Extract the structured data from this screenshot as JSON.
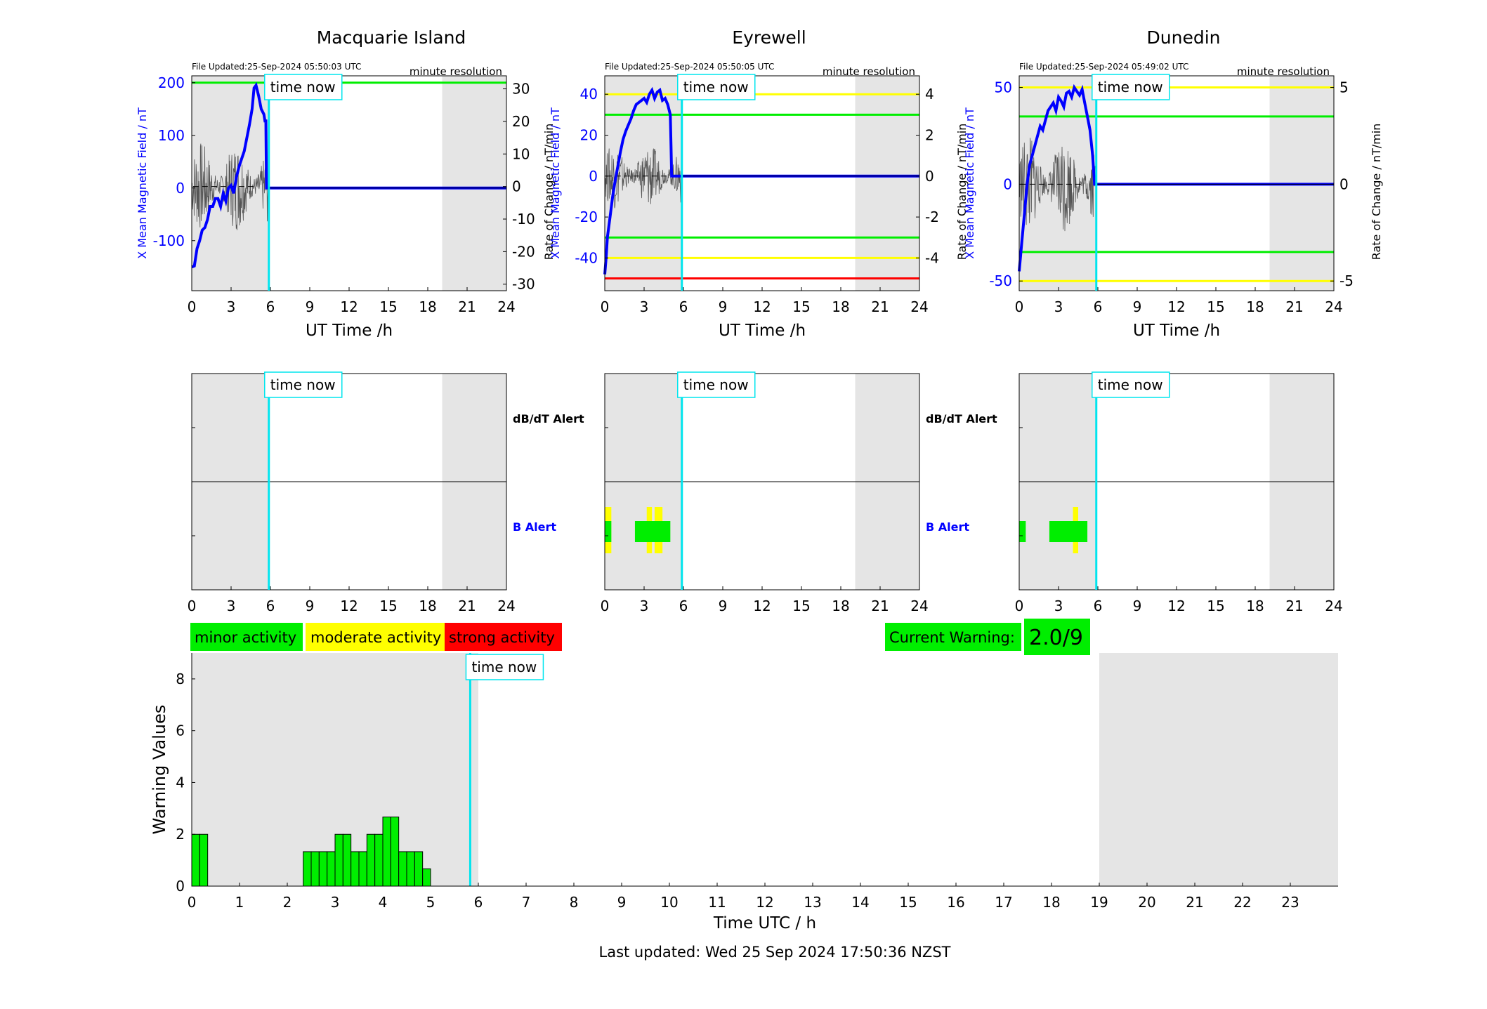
{
  "stations": [
    {
      "name": "Macquarie Island",
      "file_updated": "File Updated:25-Sep-2024 05:50:03 UTC",
      "resolution": "minute resolution",
      "left_axis_label": "X Mean Magnetic Field / nT",
      "right_axis_label": "Rate of Change / nT/min",
      "y_left_ticks": [
        -100,
        0,
        100,
        200
      ],
      "y_right_ticks": [
        -30,
        -20,
        -10,
        0,
        10,
        20,
        30
      ]
    },
    {
      "name": "Eyrewell",
      "file_updated": "File Updated:25-Sep-2024 05:50:05 UTC",
      "resolution": "minute resolution",
      "left_axis_label": "X Mean Magnetic Field / nT",
      "right_axis_label": "Rate of Change / nT/min",
      "y_left_ticks": [
        -40,
        -20,
        0,
        20,
        40
      ],
      "y_right_ticks": [
        -4,
        -2,
        0,
        2,
        4
      ]
    },
    {
      "name": "Dunedin",
      "file_updated": "File Updated:25-Sep-2024 05:49:02 UTC",
      "resolution": "minute resolution",
      "left_axis_label": "X Mean Magnetic Field / nT",
      "right_axis_label": "Rate of Change / nT/min",
      "y_left_ticks": [
        -50,
        0,
        50
      ],
      "y_right_ticks": [
        -5,
        0,
        5
      ]
    }
  ],
  "x_axis_label": "UT Time /h",
  "x_ticks": [
    0,
    3,
    6,
    9,
    12,
    15,
    18,
    21,
    24
  ],
  "time_now_label": "time now",
  "alert_labels": {
    "dbdt": "dB/dT Alert",
    "b": "B Alert"
  },
  "legend": {
    "minor": "minor activity",
    "moderate": "moderate activity",
    "strong": "strong activity"
  },
  "current_warning": {
    "label": "Current Warning:",
    "value": "2.0/9"
  },
  "warning_chart": {
    "ylabel": "Warning Values",
    "xlabel": "Time UTC / h",
    "y_ticks": [
      0,
      2,
      4,
      6,
      8
    ],
    "x_ticks": [
      0,
      1,
      2,
      3,
      4,
      5,
      6,
      7,
      8,
      9,
      10,
      11,
      12,
      13,
      14,
      15,
      16,
      17,
      18,
      19,
      20,
      21,
      22,
      23
    ]
  },
  "last_updated": "Last updated: Wed 25 Sep 2024 17:50:36 NZST",
  "colors": {
    "minor": "#00ee00",
    "moderate": "#ffff00",
    "strong": "#ff0000",
    "field": "#0000ff",
    "time_now": "#00e5ee",
    "night": "#e5e5e5"
  },
  "chart_data": [
    {
      "type": "line",
      "title": "Macquarie Island",
      "xlabel": "UT Time /h",
      "ylabel": "X Mean Magnetic Field / nT",
      "y2label": "Rate of Change / nT/min",
      "xlim": [
        0,
        24
      ],
      "ylim": [
        -195,
        213
      ],
      "y2lim": [
        -32,
        34
      ],
      "time_now": 5.88,
      "night_shading": [
        [
          0,
          5.88
        ],
        [
          19.1,
          24
        ]
      ],
      "thresholds": [
        {
          "value": 200,
          "level": "minor"
        }
      ],
      "series": [
        {
          "x": [
            0,
            0.2,
            0.4,
            0.6,
            0.8,
            1.0,
            1.2,
            1.4,
            1.6,
            1.8,
            2.0,
            2.2,
            2.4,
            2.6,
            2.8,
            3.0,
            3.2,
            3.4,
            3.6,
            3.8,
            4.0,
            4.2,
            4.4,
            4.6,
            4.75,
            4.9,
            5.1,
            5.3,
            5.5,
            5.6,
            5.65,
            5.7,
            5.8,
            6,
            24
          ],
          "values": [
            -150,
            -148,
            -115,
            -100,
            -80,
            -75,
            -60,
            -35,
            -35,
            -20,
            -20,
            -35,
            -10,
            -25,
            0,
            5,
            -10,
            20,
            40,
            55,
            70,
            95,
            120,
            150,
            190,
            195,
            175,
            150,
            140,
            125,
            130,
            0,
            0,
            0,
            0
          ]
        }
      ]
    },
    {
      "type": "line",
      "title": "Eyrewell",
      "xlabel": "UT Time /h",
      "ylabel": "X Mean Magnetic Field / nT",
      "y2label": "Rate of Change / nT/min",
      "xlim": [
        0,
        24
      ],
      "ylim": [
        -56,
        49
      ],
      "y2lim": [
        -5.6,
        4.9
      ],
      "time_now": 5.88,
      "night_shading": [
        [
          0,
          5.88
        ],
        [
          19.1,
          24
        ]
      ],
      "thresholds": [
        {
          "value": 40,
          "level": "moderate"
        },
        {
          "value": 30,
          "level": "minor"
        },
        {
          "value": -30,
          "level": "minor"
        },
        {
          "value": -40,
          "level": "moderate"
        },
        {
          "value": -50,
          "level": "strong"
        }
      ],
      "series": [
        {
          "x": [
            0,
            0.1,
            0.2,
            0.4,
            0.6,
            0.8,
            1.0,
            1.2,
            1.4,
            1.6,
            1.8,
            2.0,
            2.2,
            2.4,
            2.6,
            2.8,
            3.0,
            3.2,
            3.4,
            3.6,
            3.8,
            4.0,
            4.2,
            4.4,
            4.6,
            4.8,
            5.0,
            5.05,
            5.1,
            6,
            24
          ],
          "values": [
            -48,
            -40,
            -30,
            -20,
            -10,
            -2,
            5,
            12,
            18,
            22,
            25,
            28,
            32,
            35,
            36,
            37,
            38,
            36,
            40,
            42,
            38,
            41,
            42,
            37,
            38,
            35,
            30,
            15,
            0,
            0,
            0
          ]
        }
      ]
    },
    {
      "type": "line",
      "title": "Dunedin",
      "xlabel": "UT Time /h",
      "ylabel": "X Mean Magnetic Field / nT",
      "y2label": "Rate of Change / nT/min",
      "xlim": [
        0,
        24
      ],
      "ylim": [
        -55,
        56
      ],
      "y2lim": [
        -5.5,
        5.6
      ],
      "time_now": 5.88,
      "night_shading": [
        [
          0,
          5.88
        ],
        [
          19.1,
          24
        ]
      ],
      "thresholds": [
        {
          "value": 50,
          "level": "moderate"
        },
        {
          "value": 35,
          "level": "minor"
        },
        {
          "value": -35,
          "level": "minor"
        },
        {
          "value": -50,
          "level": "moderate"
        }
      ],
      "series": [
        {
          "x": [
            0,
            0.2,
            0.4,
            0.6,
            0.8,
            1.0,
            1.2,
            1.4,
            1.6,
            1.8,
            2.0,
            2.2,
            2.4,
            2.6,
            2.8,
            3.0,
            3.2,
            3.4,
            3.6,
            3.8,
            4.0,
            4.2,
            4.4,
            4.6,
            4.8,
            5.0,
            5.2,
            5.4,
            5.6,
            5.75,
            6,
            24
          ],
          "values": [
            -45,
            -30,
            -15,
            0,
            10,
            15,
            20,
            25,
            30,
            28,
            33,
            38,
            40,
            42,
            38,
            45,
            43,
            40,
            47,
            48,
            45,
            50,
            48,
            46,
            49,
            42,
            35,
            28,
            15,
            0,
            0,
            0
          ]
        }
      ]
    },
    {
      "type": "bar",
      "title": "",
      "xlabel": "Time UTC / h",
      "ylabel": "Warning Values",
      "xlim": [
        0,
        24
      ],
      "ylim": [
        0,
        9
      ],
      "time_now": 5.83,
      "night_shading": [
        [
          0,
          6
        ],
        [
          19,
          24
        ]
      ],
      "bin_width": 0.1667,
      "bins": [
        {
          "start": 0.0,
          "value": 2
        },
        {
          "start": 0.1667,
          "value": 2
        },
        {
          "start": 2.3333,
          "value": 1.33
        },
        {
          "start": 2.5,
          "value": 1.33
        },
        {
          "start": 2.6667,
          "value": 1.33
        },
        {
          "start": 2.8333,
          "value": 1.33
        },
        {
          "start": 3.0,
          "value": 2
        },
        {
          "start": 3.1667,
          "value": 2
        },
        {
          "start": 3.3333,
          "value": 1.33
        },
        {
          "start": 3.5,
          "value": 1.33
        },
        {
          "start": 3.6667,
          "value": 2
        },
        {
          "start": 3.8333,
          "value": 2
        },
        {
          "start": 4.0,
          "value": 2.67
        },
        {
          "start": 4.1667,
          "value": 2.67
        },
        {
          "start": 4.3333,
          "value": 1.33
        },
        {
          "start": 4.5,
          "value": 1.33
        },
        {
          "start": 4.6667,
          "value": 1.33
        },
        {
          "start": 4.8333,
          "value": 0.67
        }
      ]
    }
  ],
  "alert_data": [
    {
      "b_alert": []
    },
    {
      "b_alert": [
        {
          "start": 0.0,
          "end": 0.5,
          "level": "minor",
          "band": "wide"
        },
        {
          "start": 0.0,
          "end": 0.5,
          "level": "moderate",
          "band": "outer"
        },
        {
          "start": 2.3,
          "end": 5.0,
          "level": "minor",
          "band": "wide"
        },
        {
          "start": 3.2,
          "end": 3.6,
          "level": "moderate",
          "band": "outer"
        },
        {
          "start": 3.8,
          "end": 4.4,
          "level": "moderate",
          "band": "outer"
        }
      ]
    },
    {
      "b_alert": [
        {
          "start": 0.0,
          "end": 0.5,
          "level": "minor",
          "band": "wide"
        },
        {
          "start": 2.3,
          "end": 5.2,
          "level": "minor",
          "band": "wide"
        },
        {
          "start": 4.1,
          "end": 4.5,
          "level": "moderate",
          "band": "outer"
        }
      ]
    }
  ]
}
